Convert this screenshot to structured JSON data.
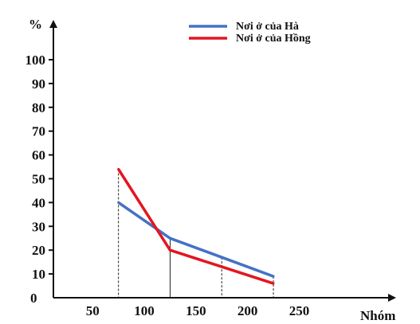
{
  "chart_data": {
    "type": "line",
    "ylabel": "%",
    "xlabel": "Nhóm",
    "ylim": [
      0,
      100
    ],
    "y_ticks": [
      0,
      10,
      20,
      30,
      40,
      50,
      60,
      70,
      80,
      90,
      100
    ],
    "x_ticks": [
      50,
      100,
      150,
      200,
      250
    ],
    "x": [
      75,
      125,
      175,
      225
    ],
    "series": [
      {
        "name": "Nơi ở của Hà",
        "color": "#4472c4",
        "values": [
          40,
          25,
          17,
          9
        ]
      },
      {
        "name": "Nơi ở của Hồng",
        "color": "#e3161f",
        "values": [
          54,
          20,
          13,
          6
        ]
      }
    ],
    "drop_lines": true,
    "legend_position": "top-right",
    "grid": false
  }
}
